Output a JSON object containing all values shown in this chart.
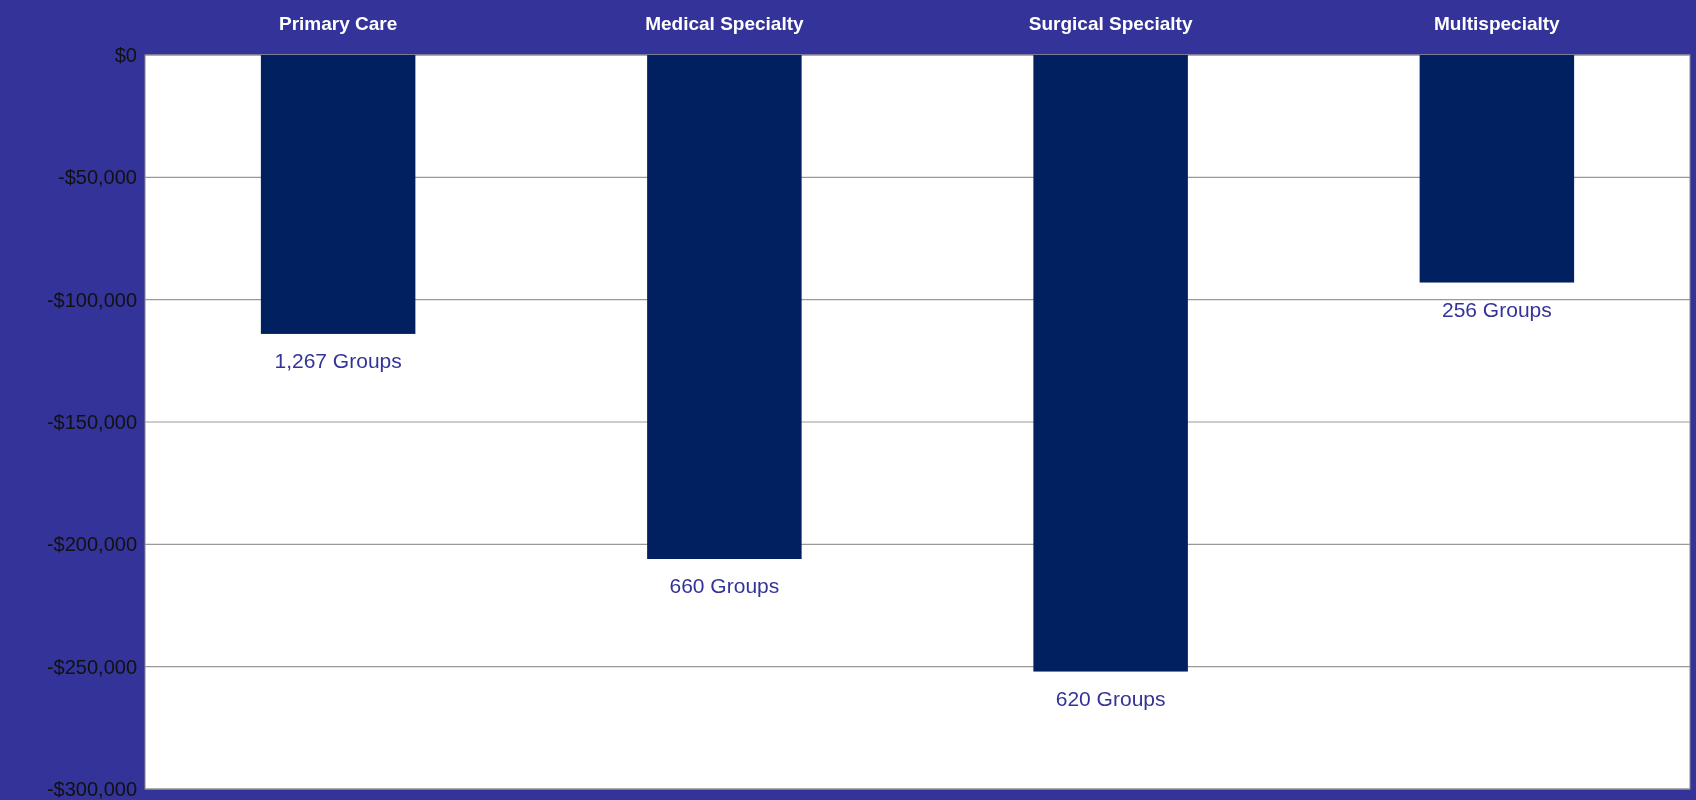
{
  "chart_data": {
    "type": "bar",
    "categories": [
      "Primary Care",
      "Medical Specialty",
      "Surgical Specialty",
      "Multispecialty"
    ],
    "values": [
      -114000,
      -206000,
      -252000,
      -93000
    ],
    "color": "#002060",
    "ylim": [
      -300000,
      0
    ],
    "yticks": [
      {
        "value": -300000,
        "label": "-$300,000"
      },
      {
        "value": -250000,
        "label": "-$250,000"
      },
      {
        "value": -200000,
        "label": "-$200,000"
      },
      {
        "value": -150000,
        "label": "-$150,000"
      },
      {
        "value": -100000,
        "label": "-$100,000"
      },
      {
        "value": -50000,
        "label": "-$50,000"
      },
      {
        "value": 0,
        "label": "$0"
      }
    ],
    "grid": "y",
    "annotations": [
      {
        "text": "1,267 Groups",
        "x": "Primary Care",
        "y": -114000
      },
      {
        "text": "660 Groups",
        "x": "Medical Specialty",
        "y": -206000
      },
      {
        "text": "620 Groups",
        "x": "Surgical Specialty",
        "y": -252000
      },
      {
        "text": "256 Groups",
        "x": "Multispecialty",
        "y": -93000
      }
    ]
  }
}
